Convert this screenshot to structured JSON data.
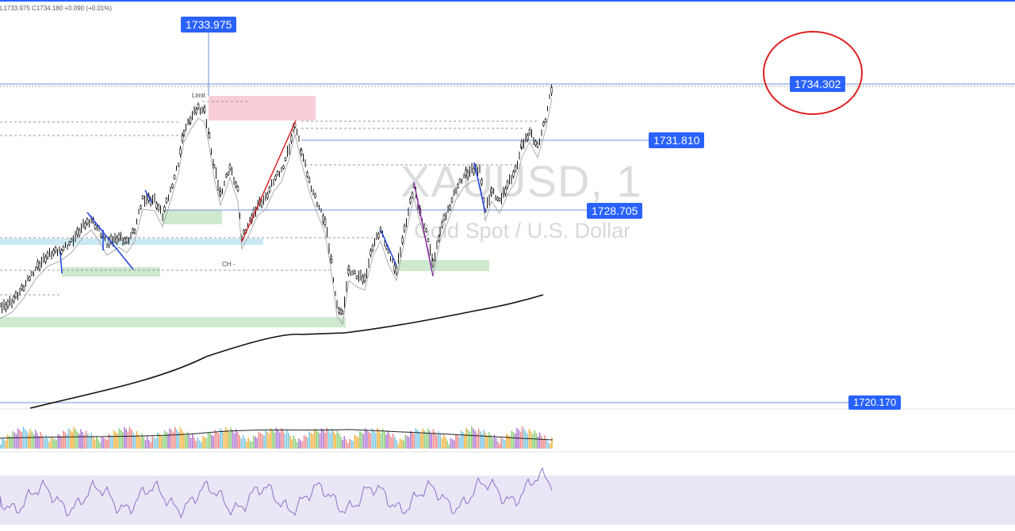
{
  "header": {
    "ohlc": "L1733.975  C1734.180  +0.090 (+0.01%)"
  },
  "watermark": {
    "symbol": "XAUUSD, 1",
    "description": "Gold Spot / U.S. Dollar"
  },
  "price_labels": {
    "high_marker": "1733.975",
    "current": "1734.302",
    "level_1": "1731.810",
    "level_2": "1728.705",
    "level_3": "1720.170"
  },
  "annotations": {
    "limit": "Limit",
    "ch": "CH -"
  },
  "colors": {
    "accent": "#2962ff",
    "up_candle": "#000000",
    "down_candle": "#000000",
    "supply_zone": "#f8c8d4",
    "demand_zone": "#cfe9cf",
    "liquidity_zone": "#cbe9f3",
    "circle_marker": "#e02020",
    "rsi_band": "#ebe6f6",
    "rsi_line": "#8a72c9"
  }
}
